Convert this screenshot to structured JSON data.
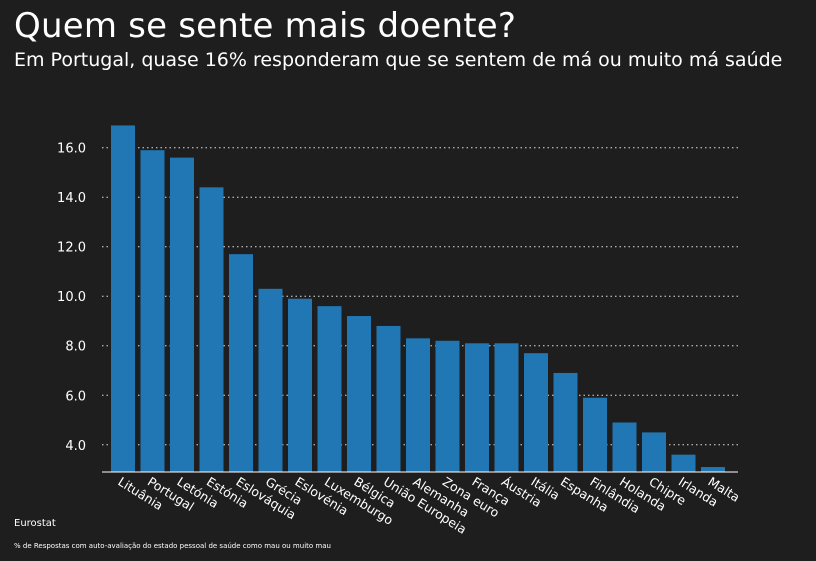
{
  "header": {
    "title": "Quem se sente mais doente?",
    "subtitle": "Em Portugal, quase 16% responderam que se sentem de má ou muito má saúde"
  },
  "footer": {
    "source": "Eurostat",
    "note": "% de Respostas com auto-avaliação do estado pessoal de saúde como mau ou muito mau"
  },
  "colors": {
    "background": "#1e1e1e",
    "bar": "#2077b4",
    "grid": "#ffffff"
  },
  "chart_data": {
    "type": "bar",
    "title": "Quem se sente mais doente?",
    "subtitle": "Em Portugal, quase 16% responderam que se sentem de má ou muito má saúde",
    "xlabel": "",
    "ylabel": "",
    "ylim": [
      2.9,
      17.2
    ],
    "yticks": [
      4.0,
      6.0,
      8.0,
      10.0,
      12.0,
      14.0,
      16.0
    ],
    "ytick_labels": [
      "4.0",
      "6.0",
      "8.0",
      "10.0",
      "12.0",
      "14.0",
      "16.0"
    ],
    "grid": true,
    "categories": [
      "Lituânia",
      "Portugal",
      "Letónia",
      "Estónia",
      "Eslováquia",
      "Grécia",
      "Eslovénia",
      "Luxemburgo",
      "Bélgica",
      "União Europeia",
      "Alemanha",
      "Zona euro",
      "França",
      "Áustria",
      "Itália",
      "Espanha",
      "Finlândia",
      "Holanda",
      "Chipre",
      "Irlanda",
      "Malta"
    ],
    "values": [
      16.9,
      15.9,
      15.6,
      14.4,
      11.7,
      10.3,
      9.9,
      9.6,
      9.2,
      8.8,
      8.3,
      8.2,
      8.1,
      8.1,
      7.7,
      6.9,
      5.9,
      4.9,
      4.5,
      3.6,
      3.1
    ]
  }
}
